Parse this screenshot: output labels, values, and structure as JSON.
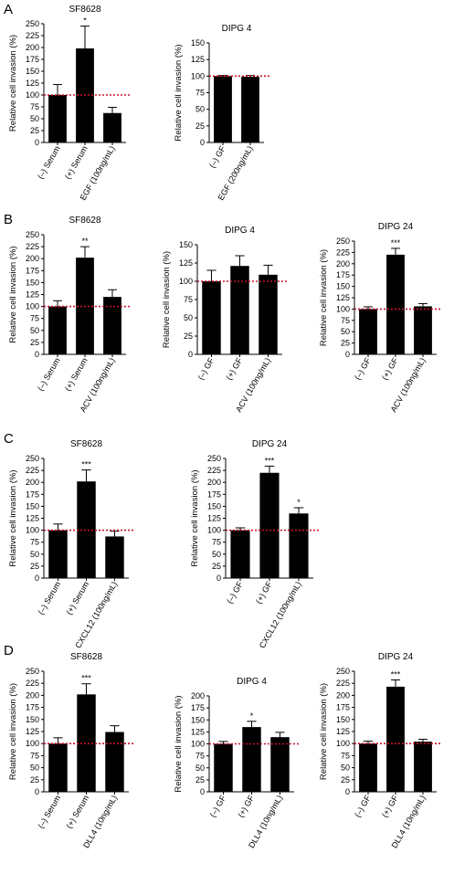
{
  "panels": [
    "A",
    "B",
    "C",
    "D"
  ],
  "chart_data": [
    {
      "panel": "A",
      "type": "bar",
      "title": "SF8628",
      "ylabel": "Relative cell invasion (%)",
      "ylim": [
        0,
        250
      ],
      "yticks": [
        0,
        25,
        50,
        75,
        100,
        125,
        150,
        175,
        200,
        225,
        250
      ],
      "categories": [
        "(–) Serum",
        "(+) Serum",
        "EGF (100ng/mL)"
      ],
      "values": [
        100,
        198,
        62
      ],
      "errors": [
        22,
        47,
        12
      ],
      "significance": [
        "",
        "*",
        ""
      ],
      "reference_line": 100
    },
    {
      "panel": "A",
      "type": "bar",
      "title": "DIPG 4",
      "ylabel": "Relative cell invasion (%)",
      "ylim": [
        0,
        150
      ],
      "yticks": [
        0,
        25,
        50,
        75,
        100,
        125,
        150
      ],
      "categories": [
        "(–) GF",
        "EGF (200ng/mL)"
      ],
      "values": [
        100,
        99
      ],
      "errors": [
        1,
        2
      ],
      "significance": [
        "",
        ""
      ],
      "reference_line": 100
    },
    {
      "panel": "B",
      "type": "bar",
      "title": "SF8628",
      "ylabel": "Relative cell invasion (%)",
      "ylim": [
        0,
        250
      ],
      "yticks": [
        0,
        25,
        50,
        75,
        100,
        125,
        150,
        175,
        200,
        225,
        250
      ],
      "categories": [
        "(–) Serum",
        "(+) Serum",
        "ACV (100ng/mL)"
      ],
      "values": [
        100,
        202,
        120
      ],
      "errors": [
        12,
        23,
        15
      ],
      "significance": [
        "",
        "**",
        ""
      ],
      "reference_line": 100
    },
    {
      "panel": "B",
      "type": "bar",
      "title": "DIPG 4",
      "ylabel": "Relative cell invasion (%)",
      "ylim": [
        0,
        150
      ],
      "yticks": [
        0,
        25,
        50,
        75,
        100,
        125,
        150
      ],
      "categories": [
        "(–) GF",
        "(+) GF",
        "ACV (100ng/mL)"
      ],
      "values": [
        100,
        121,
        109
      ],
      "errors": [
        15,
        14,
        13
      ],
      "significance": [
        "",
        "",
        ""
      ],
      "reference_line": 100
    },
    {
      "panel": "B",
      "type": "bar",
      "title": "DIPG 24",
      "ylabel": "Relative cell invasion (%)",
      "ylim": [
        0,
        250
      ],
      "yticks": [
        0,
        25,
        50,
        75,
        100,
        125,
        150,
        175,
        200,
        225,
        250
      ],
      "categories": [
        "(–) GF",
        "(+) GF",
        "ACV (100ng/mL)"
      ],
      "values": [
        100,
        220,
        106
      ],
      "errors": [
        5,
        14,
        6
      ],
      "significance": [
        "",
        "***",
        ""
      ],
      "reference_line": 100
    },
    {
      "panel": "C",
      "type": "bar",
      "title": "SF8628",
      "ylabel": "Relative cell invasion (%)",
      "ylim": [
        0,
        250
      ],
      "yticks": [
        0,
        25,
        50,
        75,
        100,
        125,
        150,
        175,
        200,
        225,
        250
      ],
      "categories": [
        "(–) Serum",
        "(+) Serum",
        "CXCL12 (100ng/mL)"
      ],
      "values": [
        100,
        202,
        87
      ],
      "errors": [
        13,
        24,
        11
      ],
      "significance": [
        "",
        "***",
        ""
      ],
      "reference_line": 100
    },
    {
      "panel": "C",
      "type": "bar",
      "title": "DIPG 24",
      "ylabel": "Relative cell invasion (%)",
      "ylim": [
        0,
        250
      ],
      "yticks": [
        0,
        25,
        50,
        75,
        100,
        125,
        150,
        175,
        200,
        225,
        250
      ],
      "categories": [
        "(–) GF",
        "(+) GF",
        "CXCL12 (100ng/mL)"
      ],
      "values": [
        100,
        220,
        135
      ],
      "errors": [
        5,
        14,
        12
      ],
      "significance": [
        "",
        "***",
        "*"
      ],
      "reference_line": 100
    },
    {
      "panel": "D",
      "type": "bar",
      "title": "SF8628",
      "ylabel": "Relative cell invasion (%)",
      "ylim": [
        0,
        250
      ],
      "yticks": [
        0,
        25,
        50,
        75,
        100,
        125,
        150,
        175,
        200,
        225,
        250
      ],
      "categories": [
        "(–) Serum",
        "(+) Serum",
        "DLL4 (10ng/mL)"
      ],
      "values": [
        100,
        202,
        124
      ],
      "errors": [
        12,
        22,
        13
      ],
      "significance": [
        "",
        "***",
        ""
      ],
      "reference_line": 100
    },
    {
      "panel": "D",
      "type": "bar",
      "title": "DIPG 4",
      "ylabel": "Relative cell invasion (%)",
      "ylim": [
        0,
        200
      ],
      "yticks": [
        0,
        25,
        50,
        75,
        100,
        125,
        150,
        175,
        200
      ],
      "categories": [
        "(–) GF",
        "(+) GF",
        "DLL4 (10ng/mL)"
      ],
      "values": [
        100,
        135,
        114
      ],
      "errors": [
        5,
        12,
        10
      ],
      "significance": [
        "",
        "*",
        ""
      ],
      "reference_line": 100
    },
    {
      "panel": "D",
      "type": "bar",
      "title": "DIPG 24",
      "ylabel": "Relative cell invasion (%)",
      "ylim": [
        0,
        250
      ],
      "yticks": [
        0,
        25,
        50,
        75,
        100,
        125,
        150,
        175,
        200,
        225,
        250
      ],
      "categories": [
        "(–) GF",
        "(+) GF",
        "DLL4 (10ng/mL)"
      ],
      "values": [
        100,
        218,
        104
      ],
      "errors": [
        5,
        14,
        5
      ],
      "significance": [
        "",
        "***",
        ""
      ],
      "reference_line": 100
    }
  ],
  "colors": {
    "bar": "#000000",
    "axis": "#000000",
    "reference_line": "#c8102e"
  }
}
